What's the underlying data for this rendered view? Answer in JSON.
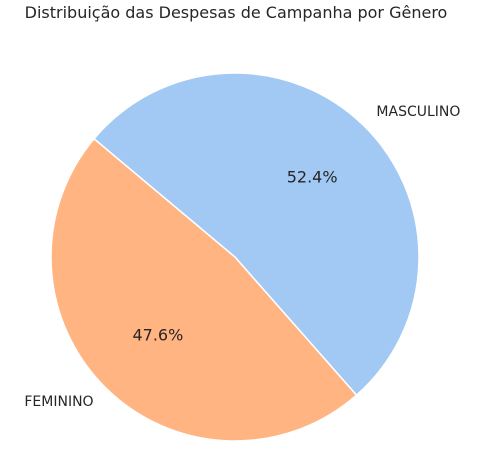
{
  "chart_data": {
    "type": "pie",
    "title": "Distribuição das Despesas de Campanha por Gênero",
    "categories": [
      "FEMININO",
      "MASCULINO"
    ],
    "values": [
      47.6,
      52.4
    ],
    "percent_labels": [
      "47.6%",
      "52.4%"
    ],
    "colors": [
      "#ffb482",
      "#a1c9f4"
    ],
    "start_angle_deg": 140,
    "direction": "counterclockwise",
    "edge_color": "#ffffff"
  }
}
